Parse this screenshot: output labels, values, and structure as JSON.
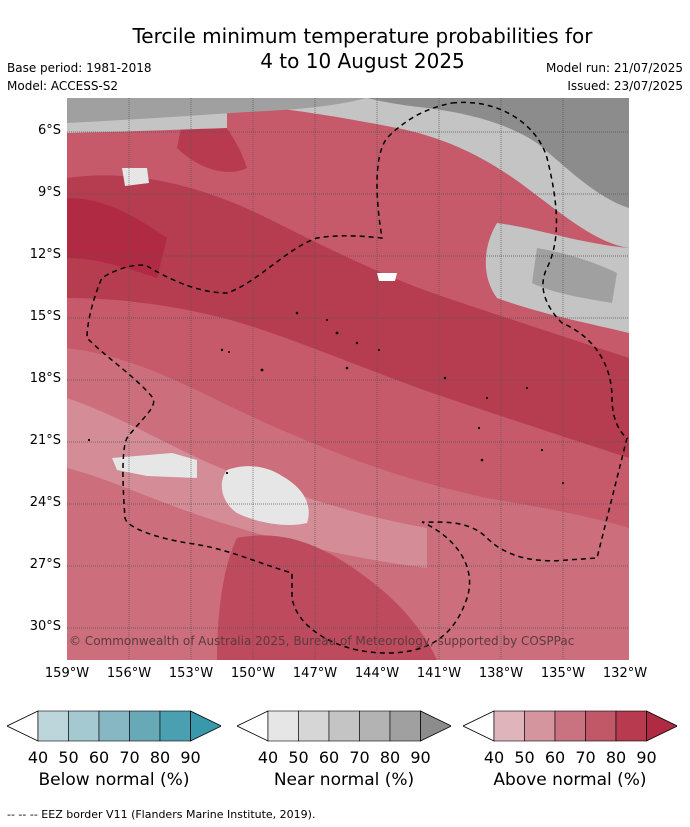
{
  "title_line1": "Tercile minimum temperature probabilities for",
  "title_line2": "4 to 10 August 2025",
  "meta": {
    "base_period": "Base period: 1981-2018",
    "model": "Model: ACCESS-S2",
    "model_run": "Model run: 21/07/2025",
    "issued": "Issued: 23/07/2025"
  },
  "copyright": "© Commonwealth of Australia 2025, Bureau of Meteorology, supported by COSPPac",
  "lat_labels": [
    "6°S",
    "9°S",
    "12°S",
    "15°S",
    "18°S",
    "21°S",
    "24°S",
    "27°S",
    "30°S"
  ],
  "lon_labels": [
    "159°W",
    "156°W",
    "153°W",
    "150°W",
    "147°W",
    "144°W",
    "141°W",
    "138°W",
    "135°W",
    "132°W"
  ],
  "legends": [
    {
      "label": "Below normal (%)",
      "ticks": [
        "40",
        "50",
        "60",
        "70",
        "80",
        "90"
      ],
      "colors": [
        "#ffffff",
        "#bdd6dc",
        "#a5c9d1",
        "#86b7c3",
        "#68a9b8",
        "#4a9fb1",
        "#3a98ac"
      ]
    },
    {
      "label": "Near normal (%)",
      "ticks": [
        "40",
        "50",
        "60",
        "70",
        "80",
        "90"
      ],
      "colors": [
        "#ffffff",
        "#e6e6e6",
        "#d6d6d6",
        "#c4c4c4",
        "#b3b3b3",
        "#a0a0a0",
        "#8c8c8c"
      ]
    },
    {
      "label": "Above normal (%)",
      "ticks": [
        "40",
        "50",
        "60",
        "70",
        "80",
        "90"
      ],
      "colors": [
        "#ffffff",
        "#e0b4bb",
        "#d5959f",
        "#c97381",
        "#c05868",
        "#b83a4f",
        "#b02a43"
      ]
    }
  ],
  "footnote": "-- -- -- EEZ border V11 (Flanders Marine Institute, 2019)."
}
